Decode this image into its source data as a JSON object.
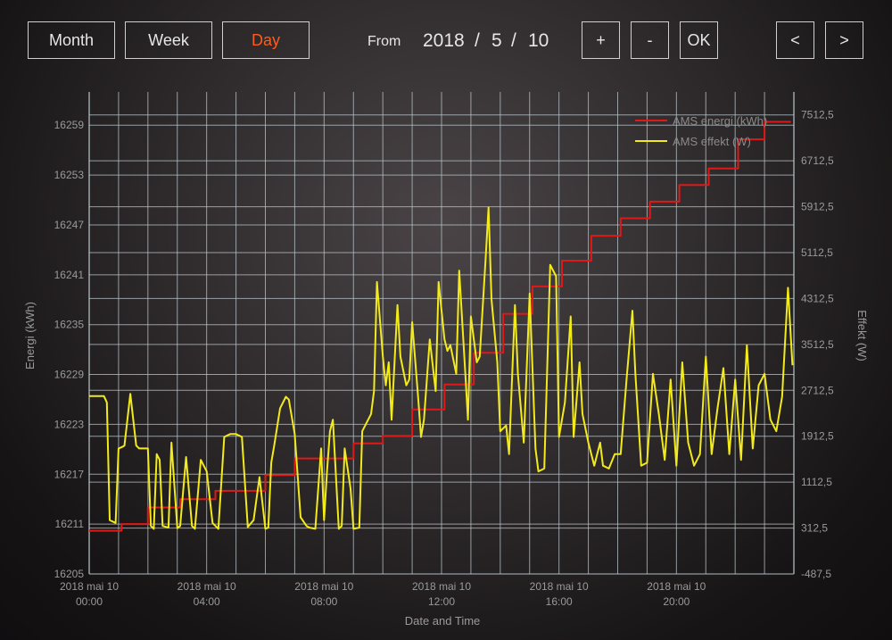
{
  "toolbar": {
    "month_label": "Month",
    "week_label": "Week",
    "day_label": "Day",
    "from_label": "From",
    "year": "2018",
    "month": "5",
    "day": "10",
    "sep": "/",
    "plus_label": "+",
    "minus_label": "-",
    "ok_label": "OK",
    "prev_label": "<",
    "next_label": ">",
    "active_color": "#ff5a1f"
  },
  "chart_data": {
    "type": "line",
    "xlabel": "Date and Time",
    "ylabel_left": "Energi (kWh)",
    "ylabel_right": "Effekt (W)",
    "x_ticks": [
      {
        "line1": "2018 mai 10",
        "line2": "00:00"
      },
      {
        "line1": "2018 mai 10",
        "line2": "04:00"
      },
      {
        "line1": "2018 mai 10",
        "line2": "08:00"
      },
      {
        "line1": "2018 mai 10",
        "line2": "12:00"
      },
      {
        "line1": "2018 mai 10",
        "line2": "16:00"
      },
      {
        "line1": "2018 mai 10",
        "line2": "20:00"
      }
    ],
    "x_tick_hours": [
      0,
      4,
      8,
      12,
      16,
      20
    ],
    "xlim_hours": [
      0,
      24
    ],
    "ylim_left": [
      16205,
      16263
    ],
    "yticks_left": [
      "16205",
      "16211",
      "16217",
      "16223",
      "16229",
      "16235",
      "16241",
      "16247",
      "16253",
      "16259"
    ],
    "ylim_right": [
      -487.5,
      7912.5
    ],
    "yticks_right": [
      "-487,5",
      "312,5",
      "1112,5",
      "1912,5",
      "2712,5",
      "3512,5",
      "4312,5",
      "5112,5",
      "5912,5",
      "6712,5",
      "7512,5"
    ],
    "legend_position": "top-right",
    "series": [
      {
        "name": "AMS energi (kWh)",
        "color": "#e01818",
        "axis": "left",
        "x_hours": [
          0,
          1.1,
          1.1,
          2.0,
          2.0,
          3.1,
          3.1,
          4.3,
          4.3,
          6.0,
          6.0,
          7.0,
          7.0,
          9.0,
          9.0,
          10.0,
          10.0,
          11.0,
          11.0,
          12.1,
          12.1,
          13.1,
          13.1,
          14.1,
          14.1,
          15.1,
          15.1,
          16.1,
          16.1,
          17.1,
          17.1,
          18.1,
          18.1,
          19.1,
          19.1,
          20.1,
          20.1,
          21.1,
          21.1,
          22.1,
          22.1,
          23.0,
          23.0,
          23.9
        ],
        "values": [
          16210.2,
          16210.2,
          16211.0,
          16211.0,
          16213.0,
          16213.0,
          16214.0,
          16214.0,
          16215.0,
          16215.0,
          16216.9,
          16216.9,
          16218.9,
          16218.9,
          16220.7,
          16220.7,
          16221.6,
          16221.6,
          16224.8,
          16224.8,
          16227.8,
          16227.8,
          16231.6,
          16231.6,
          16236.3,
          16236.3,
          16239.6,
          16239.6,
          16242.7,
          16242.7,
          16245.7,
          16245.7,
          16247.8,
          16247.8,
          16249.8,
          16249.8,
          16251.8,
          16251.8,
          16253.8,
          16253.8,
          16257.3,
          16257.3,
          16259.4,
          16259.4
        ]
      },
      {
        "name": "AMS effekt (W)",
        "color": "#f2ea1a",
        "axis": "right",
        "x_hours": [
          0,
          0.5,
          0.6,
          0.7,
          0.9,
          1.0,
          1.1,
          1.2,
          1.4,
          1.6,
          1.7,
          1.8,
          2.0,
          2.1,
          2.2,
          2.3,
          2.4,
          2.5,
          2.7,
          2.8,
          3.0,
          3.1,
          3.3,
          3.5,
          3.6,
          3.8,
          4.0,
          4.2,
          4.4,
          4.6,
          4.8,
          5.0,
          5.2,
          5.4,
          5.6,
          5.8,
          6.0,
          6.1,
          6.2,
          6.3,
          6.5,
          6.7,
          6.8,
          6.9,
          7.0,
          7.2,
          7.4,
          7.5,
          7.7,
          7.9,
          8.0,
          8.1,
          8.2,
          8.3,
          8.5,
          8.6,
          8.7,
          8.9,
          9.0,
          9.2,
          9.3,
          9.4,
          9.6,
          9.7,
          9.8,
          10.0,
          10.1,
          10.2,
          10.3,
          10.5,
          10.6,
          10.8,
          10.9,
          11.0,
          11.2,
          11.3,
          11.4,
          11.6,
          11.8,
          11.9,
          12.1,
          12.2,
          12.3,
          12.5,
          12.6,
          12.8,
          12.9,
          13.0,
          13.2,
          13.3,
          13.5,
          13.6,
          13.7,
          13.9,
          14.0,
          14.2,
          14.3,
          14.5,
          14.6,
          14.8,
          15.0,
          15.2,
          15.3,
          15.5,
          15.7,
          15.9,
          16.0,
          16.2,
          16.4,
          16.5,
          16.7,
          16.8,
          17.0,
          17.2,
          17.4,
          17.5,
          17.7,
          17.9,
          18.1,
          18.3,
          18.5,
          18.6,
          18.8,
          19.0,
          19.2,
          19.4,
          19.6,
          19.8,
          20.0,
          20.2,
          20.4,
          20.6,
          20.8,
          21.0,
          21.2,
          21.4,
          21.6,
          21.8,
          22.0,
          22.2,
          22.4,
          22.6,
          22.8,
          23.0,
          23.2,
          23.4,
          23.6,
          23.8,
          23.95
        ],
        "values": [
          2612,
          2612,
          2500,
          450,
          400,
          1700,
          1720,
          1750,
          2650,
          1750,
          1700,
          1700,
          1700,
          350,
          300,
          1600,
          1500,
          350,
          320,
          1800,
          310,
          350,
          1550,
          350,
          300,
          1500,
          1300,
          400,
          300,
          1900,
          1950,
          1950,
          1900,
          330,
          450,
          1200,
          300,
          320,
          1450,
          1750,
          2400,
          2600,
          2550,
          2250,
          1950,
          500,
          350,
          320,
          300,
          1700,
          450,
          1300,
          2000,
          2200,
          300,
          350,
          1700,
          1000,
          300,
          320,
          2000,
          2100,
          2300,
          2700,
          4600,
          3300,
          2800,
          3200,
          2200,
          4200,
          3300,
          2800,
          2900,
          3900,
          2600,
          1900,
          2200,
          3600,
          2700,
          4600,
          3600,
          3400,
          3500,
          3000,
          4800,
          3100,
          2200,
          4000,
          3200,
          3300,
          5000,
          5900,
          4300,
          3200,
          2000,
          2100,
          1600,
          4200,
          3000,
          1800,
          4400,
          1700,
          1300,
          1350,
          4900,
          4700,
          1900,
          2500,
          4000,
          1900,
          3200,
          2300,
          1800,
          1400,
          1800,
          1400,
          1350,
          1600,
          1600,
          2900,
          4100,
          3000,
          1400,
          1450,
          3000,
          2300,
          1500,
          2900,
          1400,
          3200,
          1800,
          1400,
          1600,
          3300,
          1600,
          2400,
          3100,
          1600,
          2900,
          1500,
          3500,
          1700,
          2800,
          3000,
          2200,
          2000,
          2600,
          4500,
          3150
        ]
      }
    ]
  }
}
